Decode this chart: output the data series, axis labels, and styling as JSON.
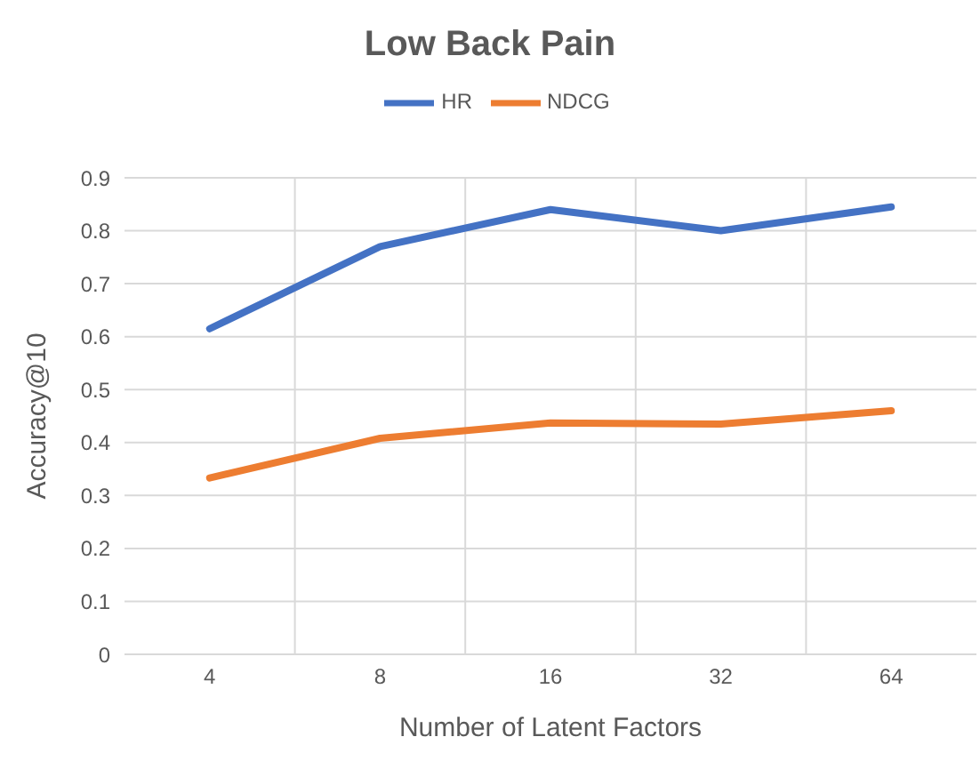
{
  "chart_data": {
    "type": "line",
    "title": "Low Back Pain",
    "xlabel": "Number of Latent Factors",
    "ylabel": "Accuracy@10",
    "categories": [
      "4",
      "8",
      "16",
      "32",
      "64"
    ],
    "series": [
      {
        "name": "HR",
        "color": "#4472c4",
        "values": [
          0.615,
          0.77,
          0.84,
          0.8,
          0.845
        ]
      },
      {
        "name": "NDCG",
        "color": "#ed7d31",
        "values": [
          0.333,
          0.408,
          0.437,
          0.435,
          0.46
        ]
      }
    ],
    "ylim": [
      0,
      0.9
    ],
    "yticks": [
      0,
      0.1,
      0.2,
      0.3,
      0.4,
      0.5,
      0.6,
      0.7,
      0.8,
      0.9
    ],
    "grid": true,
    "legend": "top",
    "marker": "none",
    "line_style": "solid"
  }
}
